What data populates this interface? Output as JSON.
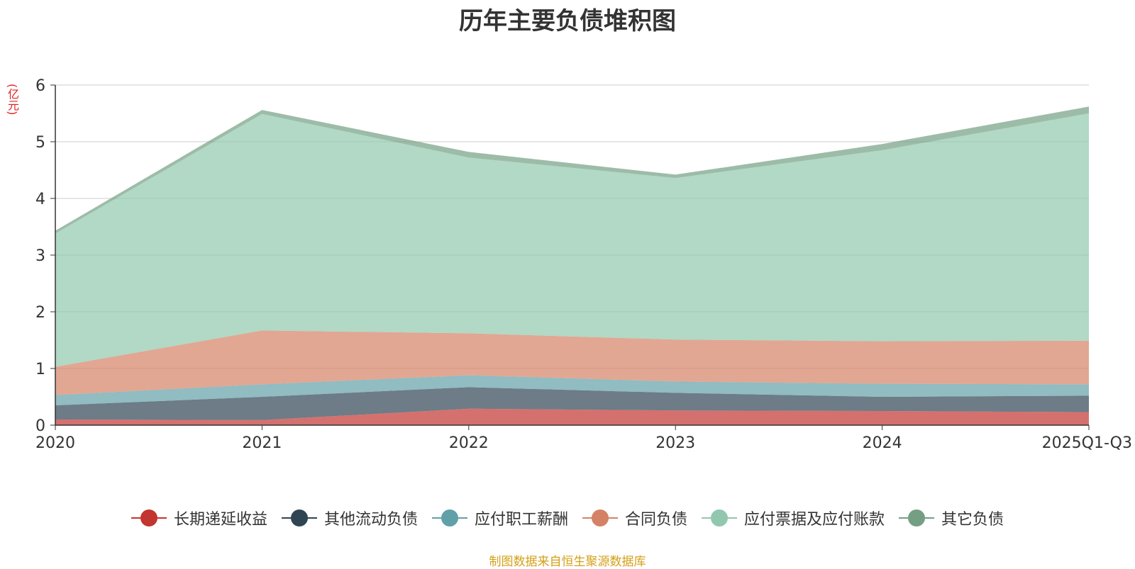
{
  "chart_data": {
    "type": "area",
    "stacked": true,
    "title": "历年主要负债堆积图",
    "ylabel": "(亿元)",
    "xlabel": "",
    "categories": [
      "2020",
      "2021",
      "2022",
      "2023",
      "2024",
      "2025Q1-Q3"
    ],
    "ylim": [
      0,
      6
    ],
    "yticks": [
      0,
      1,
      2,
      3,
      4,
      5,
      6
    ],
    "grid": true,
    "legend_position": "bottom",
    "series": [
      {
        "name": "长期递延收益",
        "color": "#c23531",
        "values": [
          0.1,
          0.09,
          0.29,
          0.26,
          0.25,
          0.23
        ]
      },
      {
        "name": "其他流动负债",
        "color": "#2f4554",
        "values": [
          0.25,
          0.41,
          0.38,
          0.31,
          0.25,
          0.29
        ]
      },
      {
        "name": "应付职工薪酬",
        "color": "#61a0a8",
        "values": [
          0.18,
          0.22,
          0.21,
          0.2,
          0.23,
          0.2
        ]
      },
      {
        "name": "合同负债",
        "color": "#d48265",
        "values": [
          0.5,
          0.95,
          0.74,
          0.74,
          0.75,
          0.77
        ]
      },
      {
        "name": "应付票据及应付账款",
        "color": "#91c7ae",
        "values": [
          2.35,
          3.82,
          3.1,
          2.85,
          3.37,
          4.01
        ]
      },
      {
        "name": "其它负债",
        "color": "#749f83",
        "values": [
          0.05,
          0.07,
          0.1,
          0.06,
          0.11,
          0.12
        ]
      }
    ]
  },
  "source_note": "制图数据来自恒生聚源数据库"
}
